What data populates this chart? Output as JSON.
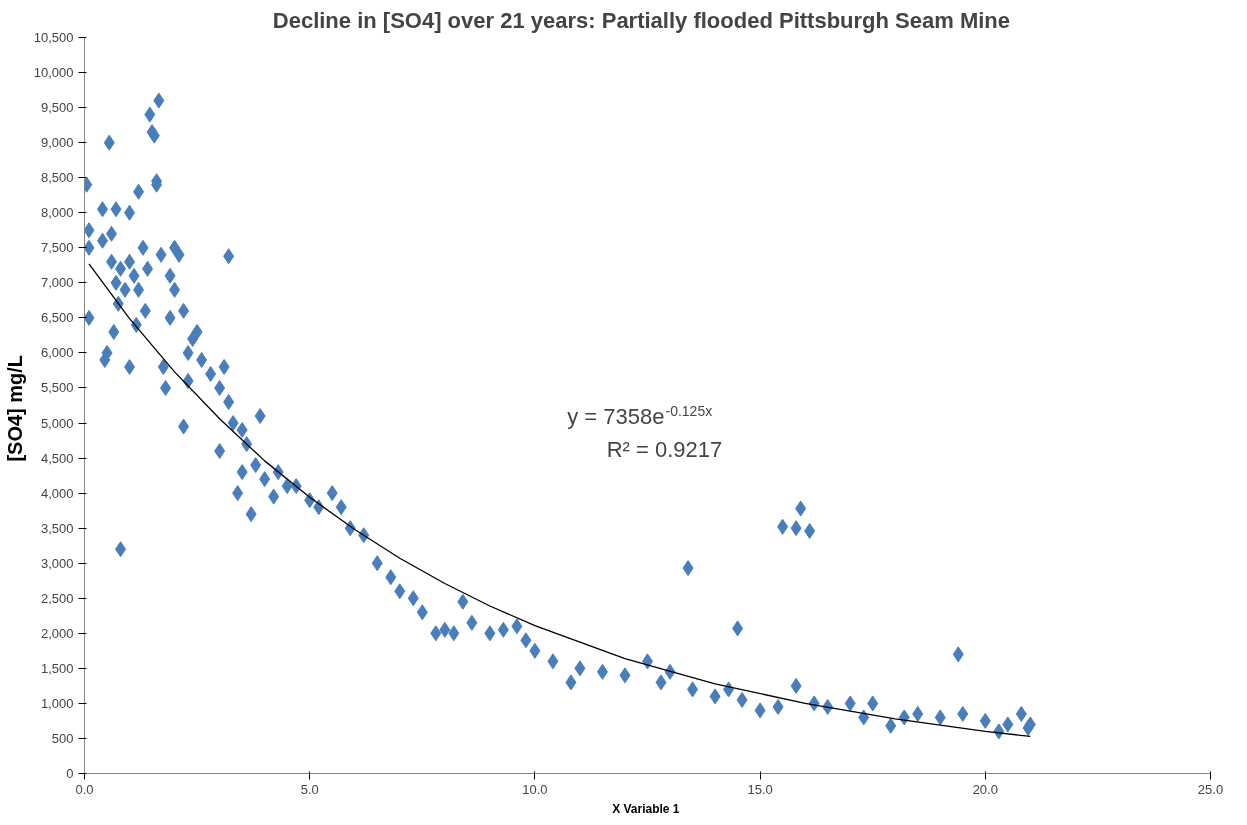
{
  "chart_data": {
    "type": "scatter",
    "title": "Decline in [SO4] over 21 years:   Partially flooded Pittsburgh Seam Mine",
    "xlabel": "X Variable  1",
    "ylabel": "[SO4]  mg/L",
    "annotations": [
      "y = 7358e$^{-0.125x}$",
      "R² = 0.9217"
    ],
    "xlim": [
      0,
      25
    ],
    "ylim": [
      0,
      10500
    ],
    "xticks": [
      {
        "value": 0,
        "label": "0.0"
      },
      {
        "value": 5,
        "label": "5.0"
      },
      {
        "value": 10,
        "label": "10.0"
      },
      {
        "value": 15,
        "label": "15.0"
      },
      {
        "value": 20,
        "label": "20.0"
      },
      {
        "value": 25,
        "label": "25.0"
      }
    ],
    "yticks": [
      0,
      500,
      {
        "value": 1000,
        "label": "1,000"
      },
      {
        "value": 1500,
        "label": "1,500"
      },
      {
        "value": 2000,
        "label": "2,000"
      },
      {
        "value": 2500,
        "label": "2,500"
      },
      {
        "value": 3000,
        "label": "3,000"
      },
      {
        "value": 3500,
        "label": "3,500"
      },
      {
        "value": 4000,
        "label": "4,000"
      },
      {
        "value": 4500,
        "label": "4,500"
      },
      {
        "value": 5000,
        "label": "5,000"
      },
      {
        "value": 5500,
        "label": "5,500"
      },
      {
        "value": 6000,
        "label": "6,000"
      },
      {
        "value": 6500,
        "label": "6,500"
      },
      {
        "value": 7000,
        "label": "7,000"
      },
      {
        "value": 7500,
        "label": "7,500"
      },
      {
        "value": 8000,
        "label": "8,000"
      },
      {
        "value": 8500,
        "label": "8,500"
      },
      {
        "value": 9000,
        "label": "9,000"
      },
      {
        "value": 9500,
        "label": "9,500"
      },
      {
        "value": 10000,
        "label": "10,000"
      },
      {
        "value": 10500,
        "label": "10,500"
      }
    ],
    "grid": false,
    "marker": "diamond",
    "series": [
      {
        "color": "#4a7ebb",
        "x": [
          0.05,
          0.1,
          0.1,
          0.1,
          0.4,
          0.4,
          0.45,
          0.5,
          0.55,
          0.6,
          0.6,
          0.65,
          0.7,
          0.7,
          0.75,
          0.8,
          0.8,
          0.9,
          1.0,
          1.0,
          1.0,
          1.1,
          1.15,
          1.2,
          1.2,
          1.3,
          1.35,
          1.4,
          1.45,
          1.5,
          1.55,
          1.6,
          1.6,
          1.65,
          1.7,
          1.75,
          1.8,
          1.9,
          1.9,
          2.0,
          2.0,
          2.1,
          2.2,
          2.2,
          2.3,
          2.3,
          2.4,
          2.5,
          2.6,
          2.8,
          3.0,
          3.0,
          3.1,
          3.2,
          3.2,
          3.3,
          3.4,
          3.5,
          3.5,
          3.6,
          3.7,
          3.8,
          3.9,
          4.0,
          4.2,
          4.3,
          4.5,
          4.7,
          5.0,
          5.2,
          5.5,
          5.7,
          5.9,
          6.2,
          6.5,
          6.8,
          7.0,
          7.3,
          7.5,
          7.8,
          8.0,
          8.2,
          8.4,
          8.6,
          9.0,
          9.3,
          9.6,
          9.8,
          10.0,
          10.4,
          10.8,
          11.0,
          11.5,
          12.0,
          12.5,
          12.8,
          13.0,
          13.4,
          13.5,
          14.0,
          14.3,
          14.5,
          14.6,
          15.0,
          15.4,
          15.5,
          15.8,
          15.8,
          15.9,
          16.1,
          16.2,
          16.5,
          17.0,
          17.3,
          17.5,
          17.9,
          18.2,
          18.5,
          19.0,
          19.4,
          19.5,
          20.0,
          20.3,
          20.5,
          20.8,
          21.0,
          20.95
        ],
        "values": [
          8400,
          7750,
          7500,
          6500,
          7600,
          8050,
          5900,
          6000,
          9000,
          7700,
          7300,
          6300,
          8050,
          7000,
          6700,
          3200,
          7200,
          6900,
          5800,
          8000,
          7300,
          7100,
          6400,
          8300,
          6900,
          7500,
          6600,
          7200,
          9400,
          9150,
          9100,
          8450,
          8400,
          9600,
          7400,
          5800,
          5500,
          6500,
          7100,
          7500,
          6900,
          7400,
          6600,
          4950,
          6000,
          5600,
          6200,
          6300,
          5900,
          5700,
          4600,
          5500,
          5800,
          7380,
          5300,
          5000,
          4000,
          4300,
          4900,
          4700,
          3700,
          4400,
          5100,
          4200,
          3950,
          4300,
          4100,
          4100,
          3900,
          3800,
          4000,
          3800,
          3500,
          3400,
          3000,
          2800,
          2600,
          2500,
          2300,
          2000,
          2050,
          2000,
          2450,
          2150,
          2000,
          2050,
          2100,
          1900,
          1750,
          1600,
          1300,
          1500,
          1450,
          1400,
          1600,
          1300,
          1450,
          2930,
          1200,
          1100,
          1200,
          2070,
          1050,
          900,
          950,
          3520,
          1250,
          3500,
          3780,
          3460,
          1000,
          950,
          1000,
          800,
          1000,
          680,
          800,
          850,
          800,
          1700,
          850,
          750,
          600,
          700,
          850,
          700,
          650
        ]
      },
      {
        "type": "line",
        "color": "#000000",
        "marker": "none",
        "x": [
          0.1,
          1,
          2,
          3,
          4,
          5,
          6,
          7,
          8,
          9,
          10,
          12,
          14,
          16,
          18,
          20,
          21
        ],
        "values": [
          7270,
          6490,
          5730,
          5060,
          4460,
          3940,
          3480,
          3070,
          2710,
          2390,
          2110,
          1640,
          1280,
          1000,
          780,
          600,
          530
        ]
      }
    ]
  }
}
